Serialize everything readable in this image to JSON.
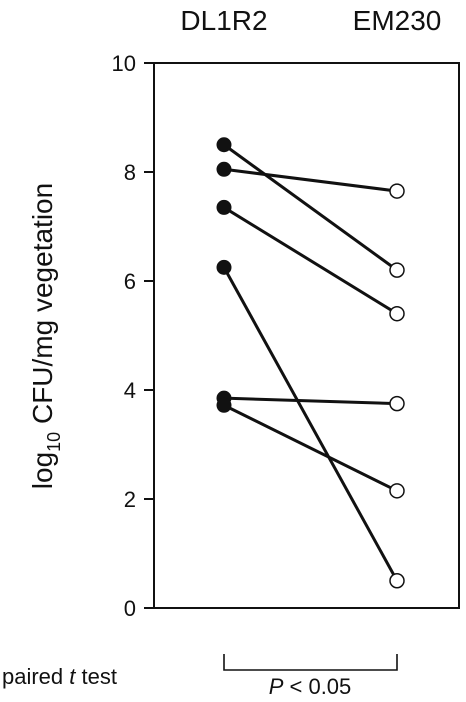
{
  "chart_data": {
    "type": "line",
    "title": "",
    "categories": [
      "DL1R2",
      "EM230"
    ],
    "ylabel": {
      "prefix": "log",
      "subscript": "10",
      "suffix": " CFU/mg vegetation"
    },
    "ylim": [
      0,
      10
    ],
    "yticks": [
      0,
      2,
      4,
      6,
      8,
      10
    ],
    "grid": false,
    "legend": "none",
    "pairs": [
      {
        "DL1R2": 8.5,
        "EM230": 6.2
      },
      {
        "DL1R2": 8.05,
        "EM230": 7.65
      },
      {
        "DL1R2": 7.35,
        "EM230": 5.4
      },
      {
        "DL1R2": 6.25,
        "EM230": 0.5
      },
      {
        "DL1R2": 3.85,
        "EM230": 3.75
      },
      {
        "DL1R2": 3.72,
        "EM230": 2.15
      }
    ],
    "markers": {
      "DL1R2": "filled-circle",
      "EM230": "open-circle"
    },
    "test": {
      "label_prefix": "paired ",
      "label_italic": "t",
      "label_suffix": " test",
      "result_italic": "P",
      "result_rest": " < 0.05"
    }
  }
}
